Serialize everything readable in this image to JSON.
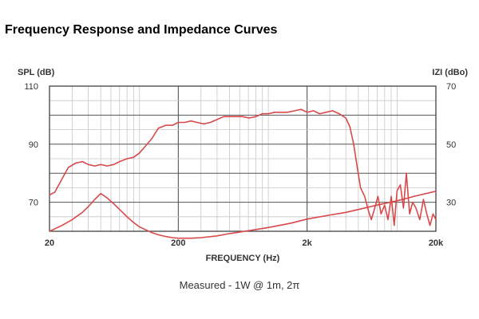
{
  "page": {
    "title": "Frequency Response and Impedance Curves"
  },
  "chart_data": {
    "type": "line",
    "title": "Frequency Response and Impedance Curves",
    "subtitle": "Measured - 1W @ 1m, 2π",
    "xlabel": "FREQUENCY (Hz)",
    "ylabel_left": "SPL (dB)",
    "ylabel_right": "IZI (dBo)",
    "x_scale": "log",
    "xlim": [
      20,
      20000
    ],
    "x_ticks": [
      20,
      200,
      2000,
      20000
    ],
    "x_tick_labels": [
      "20",
      "200",
      "2k",
      "20k"
    ],
    "ylim_left": [
      60,
      110
    ],
    "y_ticks_left": [
      70,
      90,
      110
    ],
    "y_tick_labels_left": [
      "70",
      "90",
      "110"
    ],
    "ylim_right": [
      20,
      70
    ],
    "y_ticks_right": [
      30,
      50,
      70
    ],
    "y_tick_labels_right": [
      "30",
      "50",
      "70"
    ],
    "grid": true,
    "line_color": "#d84a4a",
    "series": [
      {
        "axis": "left",
        "x": [
          20,
          22,
          25,
          28,
          32,
          36,
          40,
          45,
          50,
          56,
          63,
          70,
          80,
          90,
          100,
          112,
          125,
          140,
          160,
          180,
          200,
          225,
          250,
          280,
          315,
          355,
          400,
          450,
          500,
          560,
          630,
          710,
          800,
          900,
          1000,
          1120,
          1250,
          1400,
          1600,
          1800,
          2000,
          2240,
          2500,
          2800,
          3150,
          3550,
          4000,
          4300,
          4600,
          4900,
          5200,
          5600,
          6000,
          6300,
          6700,
          7100,
          7500,
          8000,
          8500,
          9000,
          9500,
          10000,
          10600,
          11200,
          11800,
          12500,
          13200,
          14000,
          15000,
          16000,
          17000,
          18000,
          19000,
          20000
        ],
        "y": [
          72.5,
          73.5,
          78,
          82,
          83.5,
          84,
          83,
          82.5,
          83,
          82.5,
          83,
          84,
          85,
          85.5,
          87,
          89.5,
          92,
          95.5,
          96.5,
          96.5,
          97.5,
          97.5,
          98,
          97.5,
          97,
          97.5,
          98.5,
          99.5,
          99.5,
          99.5,
          99.5,
          99,
          99.5,
          100.5,
          100.5,
          101,
          101,
          101,
          101.5,
          102,
          101,
          101.5,
          100.5,
          101,
          101.5,
          100.5,
          99,
          96,
          90,
          82,
          75,
          72,
          67,
          64,
          68,
          72,
          66,
          69,
          64,
          72,
          62,
          74,
          76,
          68,
          80,
          66,
          70,
          68,
          64,
          71,
          66,
          62,
          66,
          64
        ]
      },
      {
        "axis": "right",
        "x": [
          20,
          25,
          30,
          36,
          40,
          45,
          50,
          56,
          63,
          70,
          80,
          90,
          100,
          112,
          125,
          140,
          160,
          180,
          200,
          250,
          300,
          400,
          500,
          700,
          1000,
          1500,
          2000,
          3000,
          4000,
          5000,
          7000,
          10000,
          14000,
          20000
        ],
        "y": [
          20,
          22,
          24,
          26.5,
          28.5,
          31,
          33,
          31.5,
          29.5,
          27.5,
          25,
          23,
          21.5,
          20.5,
          19.5,
          18.8,
          18.2,
          17.8,
          17.6,
          17.6,
          17.8,
          18.4,
          19.2,
          20.2,
          21.3,
          22.8,
          24.2,
          25.6,
          26.5,
          27.5,
          29,
          30.5,
          32.2,
          33.8
        ]
      }
    ]
  },
  "caption": {
    "text": "Measured - 1W @ 1m, 2π"
  }
}
